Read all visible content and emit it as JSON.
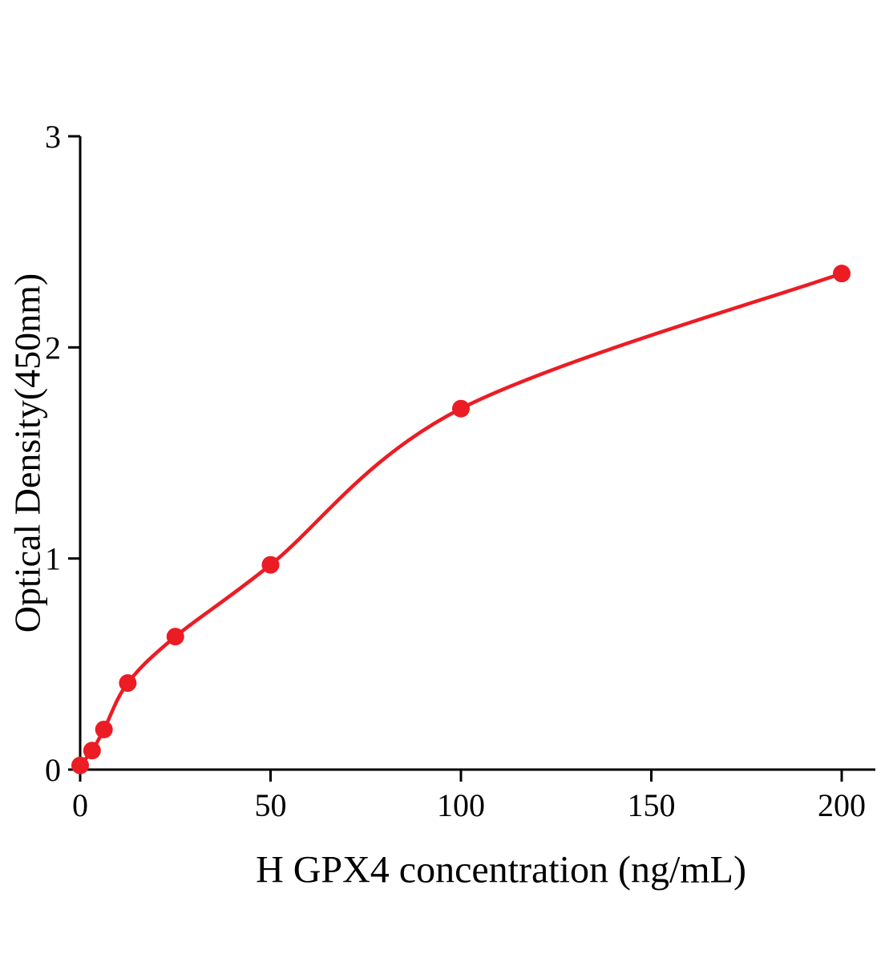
{
  "chart_data": {
    "type": "scatter",
    "title": "",
    "xlabel": "H GPX4 concentration (ng/mL)",
    "ylabel": "Optical Density(450nm)",
    "x": [
      0,
      3.125,
      6.25,
      12.5,
      25,
      50,
      100,
      200
    ],
    "y": [
      0.02,
      0.09,
      0.19,
      0.41,
      0.63,
      0.97,
      1.71,
      2.35
    ],
    "x_ticks": [
      0,
      50,
      100,
      150,
      200
    ],
    "y_ticks": [
      0,
      1,
      2,
      3
    ],
    "xlim": [
      0,
      209
    ],
    "ylim": [
      0,
      3
    ],
    "grid": false,
    "legend": "none",
    "curve": "smooth-fit",
    "colors": {
      "point": "#ec1c24",
      "curve": "#ec1c24",
      "axis": "#000000",
      "background": "#ffffff"
    }
  }
}
